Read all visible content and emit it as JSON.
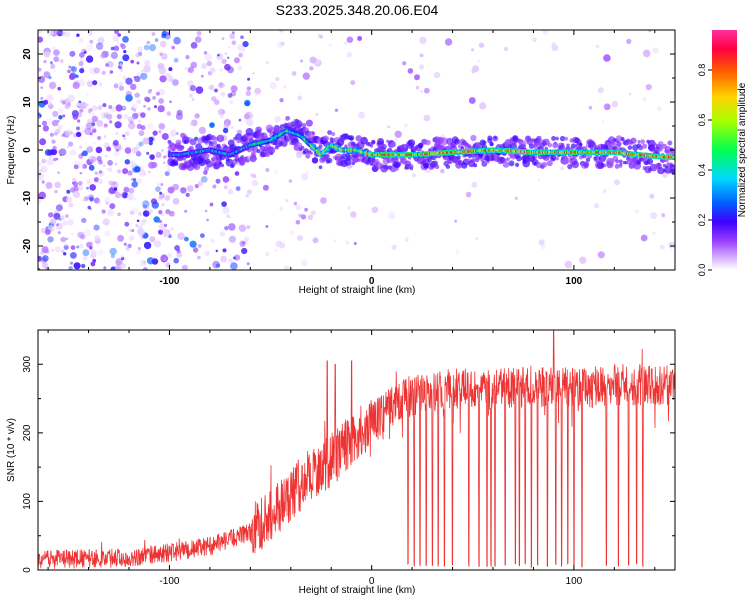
{
  "title": "S233.2025.348.20.06.E04",
  "chart_data": [
    {
      "type": "heatmap",
      "xlabel": "Height of straight line (km)",
      "ylabel": "Frequency (Hz)",
      "xlim": [
        -165,
        150
      ],
      "ylim": [
        -25,
        25
      ],
      "x_ticks": [
        -100,
        0,
        100
      ],
      "y_ticks": [
        -20,
        -10,
        0,
        10,
        20
      ],
      "colorbar": {
        "label": "Normalized spectral amplitude",
        "range": [
          0,
          0.96
        ],
        "ticks": [
          0.0,
          0.2,
          0.4,
          0.6,
          0.8
        ]
      },
      "ridge": {
        "description_points": [
          {
            "x": -95,
            "y": -1
          },
          {
            "x": -80,
            "y": 0
          },
          {
            "x": -70,
            "y": -1
          },
          {
            "x": -60,
            "y": 1
          },
          {
            "x": -50,
            "y": 2
          },
          {
            "x": -42,
            "y": 4
          },
          {
            "x": -35,
            "y": 3
          },
          {
            "x": -30,
            "y": 1
          },
          {
            "x": -25,
            "y": -1
          },
          {
            "x": -20,
            "y": 1
          },
          {
            "x": -15,
            "y": 0
          },
          {
            "x": -8,
            "y": 0
          },
          {
            "x": 0,
            "y": -1
          },
          {
            "x": 20,
            "y": -1
          },
          {
            "x": 40,
            "y": -0.5
          },
          {
            "x": 60,
            "y": 0
          },
          {
            "x": 80,
            "y": -0.5
          },
          {
            "x": 100,
            "y": -0.5
          },
          {
            "x": 120,
            "y": -0.5
          },
          {
            "x": 145,
            "y": -1.5
          }
        ]
      }
    },
    {
      "type": "line",
      "xlabel": "Height of straight line (km)",
      "ylabel": "SNR (10 * v/v)",
      "xlim": [
        -165,
        150
      ],
      "ylim": [
        0,
        350
      ],
      "x_ticks": [
        -100,
        0,
        100
      ],
      "y_ticks": [
        0,
        100,
        200,
        300
      ],
      "color": "#ee3333",
      "envelope": [
        {
          "x": -165,
          "y": 15
        },
        {
          "x": -120,
          "y": 18
        },
        {
          "x": -100,
          "y": 25
        },
        {
          "x": -80,
          "y": 35
        },
        {
          "x": -60,
          "y": 55
        },
        {
          "x": -50,
          "y": 80
        },
        {
          "x": -40,
          "y": 110
        },
        {
          "x": -30,
          "y": 140
        },
        {
          "x": -20,
          "y": 160
        },
        {
          "x": -10,
          "y": 190
        },
        {
          "x": 0,
          "y": 215
        },
        {
          "x": 10,
          "y": 240
        },
        {
          "x": 20,
          "y": 255
        },
        {
          "x": 40,
          "y": 265
        },
        {
          "x": 60,
          "y": 265
        },
        {
          "x": 80,
          "y": 268
        },
        {
          "x": 100,
          "y": 265
        },
        {
          "x": 120,
          "y": 270
        },
        {
          "x": 150,
          "y": 270
        }
      ],
      "spikes_up": [
        {
          "x": -22,
          "y": 305
        },
        {
          "x": -18,
          "y": 300
        },
        {
          "x": -10,
          "y": 305
        },
        {
          "x": 90,
          "y": 350
        }
      ],
      "dropouts_x": [
        18,
        21,
        24,
        27,
        30,
        33,
        36,
        40,
        48,
        53,
        57,
        59,
        61,
        66,
        71,
        73,
        76,
        79,
        82,
        87,
        91,
        94,
        97,
        100,
        104,
        116,
        122,
        127,
        131,
        134
      ]
    }
  ]
}
